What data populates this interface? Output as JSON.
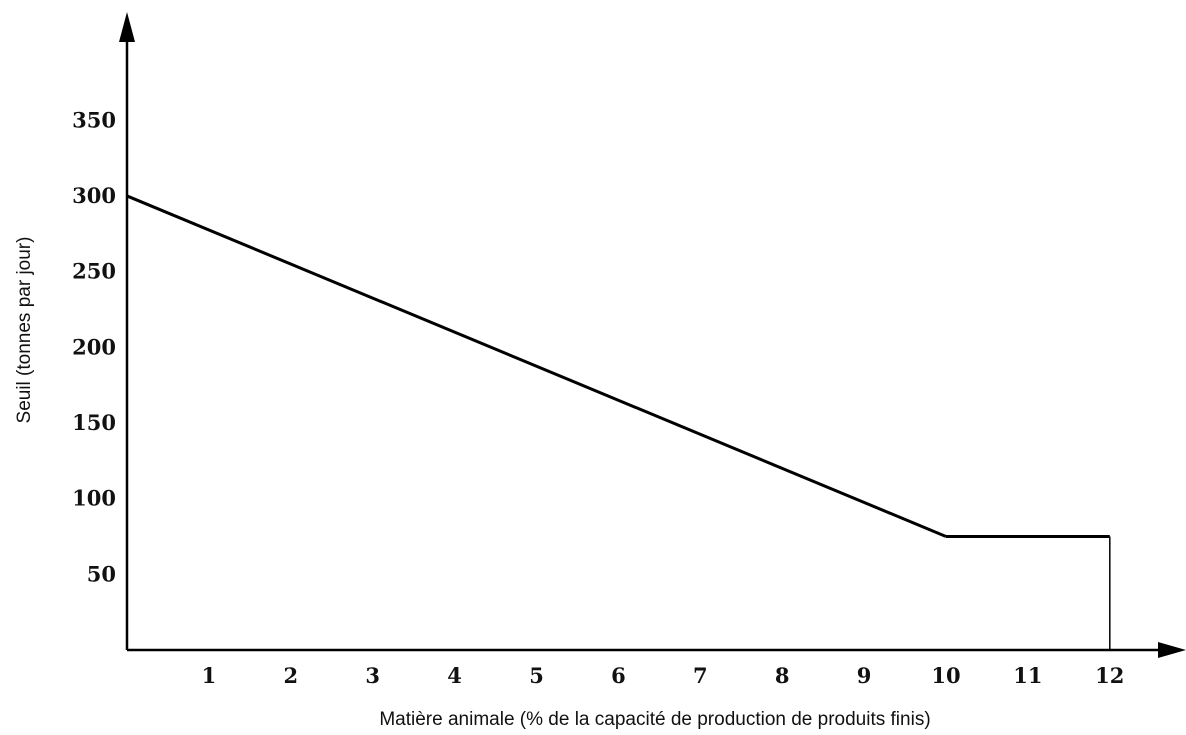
{
  "chart_data": {
    "type": "line",
    "title": "",
    "xlabel": "Matière animale (% de la capacité de production de produits finis)",
    "ylabel": "Seuil (tonnes par jour)",
    "xlim": [
      0,
      12
    ],
    "ylim": [
      0,
      350
    ],
    "x_ticks": [
      "1",
      "2",
      "3",
      "4",
      "5",
      "6",
      "7",
      "8",
      "9",
      "10",
      "11",
      "12"
    ],
    "y_ticks": [
      "50",
      "100",
      "150",
      "200",
      "250",
      "300",
      "350"
    ],
    "grid": false,
    "series": [
      {
        "x": [
          0,
          10,
          12,
          12
        ],
        "y": [
          300,
          75,
          75,
          0
        ]
      }
    ],
    "colors": {
      "line": "#000000",
      "axis": "#000000",
      "text": "#111111"
    }
  }
}
